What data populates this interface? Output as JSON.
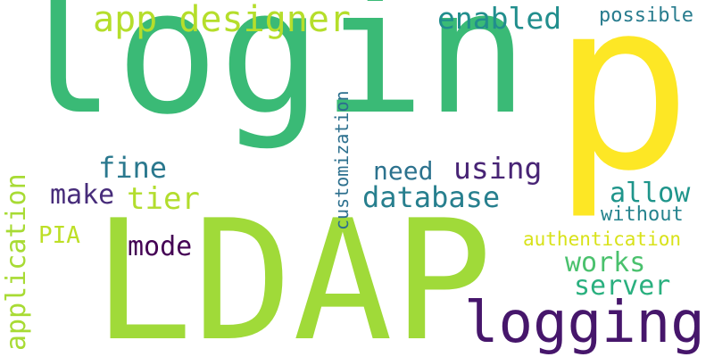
{
  "words": [
    {
      "key": "login",
      "text": "login",
      "color": "#3aba76"
    },
    {
      "key": "p",
      "text": "p",
      "color": "#fde725"
    },
    {
      "key": "LDAP",
      "text": "LDAP",
      "color": "#a0da39"
    },
    {
      "key": "logging",
      "text": "logging",
      "color": "#46166b"
    },
    {
      "key": "app_designer",
      "text": "app designer",
      "color": "#b5de2b"
    },
    {
      "key": "enabled",
      "text": "enabled",
      "color": "#218e8d"
    },
    {
      "key": "possible",
      "text": "possible",
      "color": "#287c8e"
    },
    {
      "key": "fine",
      "text": "fine",
      "color": "#2a788e"
    },
    {
      "key": "need",
      "text": "need",
      "color": "#2c728e"
    },
    {
      "key": "using",
      "text": "using",
      "color": "#482475"
    },
    {
      "key": "make",
      "text": "make",
      "color": "#472c7a"
    },
    {
      "key": "tier",
      "text": "tier",
      "color": "#b2dd2d"
    },
    {
      "key": "database",
      "text": "database",
      "color": "#277f8e"
    },
    {
      "key": "allow",
      "text": "allow",
      "color": "#1f958b"
    },
    {
      "key": "without",
      "text": "without",
      "color": "#25838e"
    },
    {
      "key": "PIA",
      "text": "PIA",
      "color": "#bddf26"
    },
    {
      "key": "mode",
      "text": "mode",
      "color": "#440154"
    },
    {
      "key": "authentication",
      "text": "authentication",
      "color": "#d8e219"
    },
    {
      "key": "works",
      "text": "works",
      "color": "#4ac16d"
    },
    {
      "key": "server",
      "text": "server",
      "color": "#2ab07f"
    },
    {
      "key": "application",
      "text": "application",
      "color": "#a8db34"
    },
    {
      "key": "customization",
      "text": "customization",
      "color": "#2d708e"
    }
  ]
}
